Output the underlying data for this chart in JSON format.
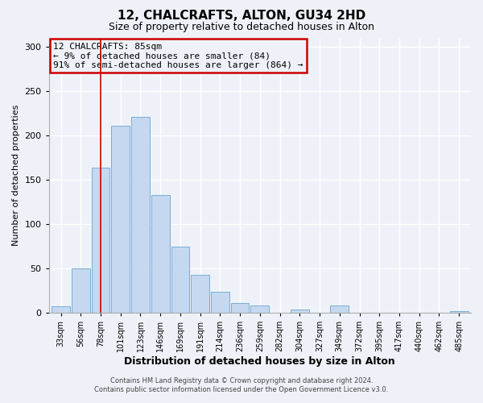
{
  "title": "12, CHALCRAFTS, ALTON, GU34 2HD",
  "subtitle": "Size of property relative to detached houses in Alton",
  "xlabel": "Distribution of detached houses by size in Alton",
  "ylabel": "Number of detached properties",
  "bar_labels": [
    "33sqm",
    "56sqm",
    "78sqm",
    "101sqm",
    "123sqm",
    "146sqm",
    "169sqm",
    "191sqm",
    "214sqm",
    "236sqm",
    "259sqm",
    "282sqm",
    "304sqm",
    "327sqm",
    "349sqm",
    "372sqm",
    "395sqm",
    "417sqm",
    "440sqm",
    "462sqm",
    "485sqm"
  ],
  "bar_heights": [
    7,
    50,
    164,
    211,
    221,
    133,
    75,
    43,
    24,
    11,
    8,
    0,
    4,
    0,
    8,
    0,
    0,
    0,
    0,
    0,
    2
  ],
  "bar_color": "#c5d8f0",
  "bar_edge_color": "#7aadd4",
  "vline_x_index": 2,
  "vline_color": "#cc0000",
  "annotation_title": "12 CHALCRAFTS: 85sqm",
  "annotation_line1": "← 9% of detached houses are smaller (84)",
  "annotation_line2": "91% of semi-detached houses are larger (864) →",
  "annotation_box_color": "#cc0000",
  "ylim": [
    0,
    310
  ],
  "yticks": [
    0,
    50,
    100,
    150,
    200,
    250,
    300
  ],
  "footer1": "Contains HM Land Registry data © Crown copyright and database right 2024.",
  "footer2": "Contains public sector information licensed under the Open Government Licence v3.0.",
  "bg_color": "#eef2f8",
  "grid_color": "#ffffff"
}
